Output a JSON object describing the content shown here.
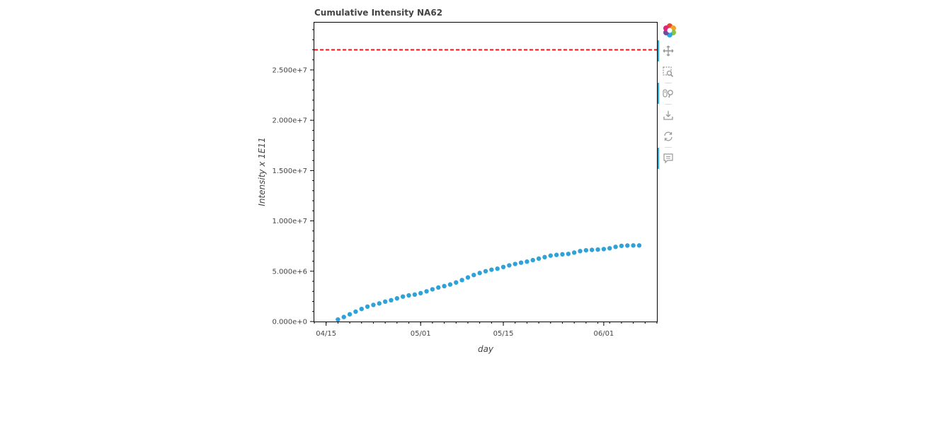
{
  "chart_data": {
    "type": "scatter",
    "title": "Cumulative Intensity NA62",
    "xlabel": "day",
    "ylabel": "Intensity x 1E11",
    "x_type": "date",
    "xlim": [
      "2023-04-13",
      "2023-06-10"
    ],
    "ylim": [
      0,
      29700000
    ],
    "x_ticks": [
      {
        "date": "2023-04-15",
        "label": "04/15"
      },
      {
        "date": "2023-05-01",
        "label": "05/01"
      },
      {
        "date": "2023-05-15",
        "label": "05/15"
      },
      {
        "date": "2023-06-01",
        "label": "06/01"
      }
    ],
    "y_ticks": [
      {
        "value": 0,
        "label": "0.000e+0"
      },
      {
        "value": 5000000,
        "label": "5.000e+6"
      },
      {
        "value": 10000000,
        "label": "1.000e+7"
      },
      {
        "value": 15000000,
        "label": "1.500e+7"
      },
      {
        "value": 20000000,
        "label": "2.000e+7"
      },
      {
        "value": 25000000,
        "label": "2.500e+7"
      }
    ],
    "reference_line": {
      "value": 27000000,
      "color": "#e41a1c",
      "style": "dashed"
    },
    "series": [
      {
        "color": "#30a2da",
        "x": [
          "2023-04-17",
          "2023-04-18",
          "2023-04-19",
          "2023-04-20",
          "2023-04-21",
          "2023-04-22",
          "2023-04-23",
          "2023-04-24",
          "2023-04-25",
          "2023-04-26",
          "2023-04-27",
          "2023-04-28",
          "2023-04-29",
          "2023-04-30",
          "2023-05-01",
          "2023-05-02",
          "2023-05-03",
          "2023-05-04",
          "2023-05-05",
          "2023-05-06",
          "2023-05-07",
          "2023-05-08",
          "2023-05-09",
          "2023-05-10",
          "2023-05-11",
          "2023-05-12",
          "2023-05-13",
          "2023-05-14",
          "2023-05-15",
          "2023-05-16",
          "2023-05-17",
          "2023-05-18",
          "2023-05-19",
          "2023-05-20",
          "2023-05-21",
          "2023-05-22",
          "2023-05-23",
          "2023-05-24",
          "2023-05-25",
          "2023-05-26",
          "2023-05-27",
          "2023-05-28",
          "2023-05-29",
          "2023-05-30",
          "2023-05-31",
          "2023-06-01",
          "2023-06-02",
          "2023-06-03",
          "2023-06-04",
          "2023-06-05",
          "2023-06-06",
          "2023-06-07"
        ],
        "values": [
          200000,
          450000,
          720000,
          980000,
          1250000,
          1480000,
          1650000,
          1800000,
          1980000,
          2120000,
          2300000,
          2480000,
          2600000,
          2680000,
          2820000,
          3000000,
          3200000,
          3380000,
          3520000,
          3680000,
          3880000,
          4120000,
          4380000,
          4620000,
          4820000,
          5000000,
          5150000,
          5250000,
          5420000,
          5580000,
          5720000,
          5850000,
          5950000,
          6100000,
          6250000,
          6400000,
          6550000,
          6620000,
          6680000,
          6720000,
          6850000,
          7000000,
          7080000,
          7120000,
          7150000,
          7200000,
          7280000,
          7420000,
          7520000,
          7550000,
          7560000,
          7560000
        ]
      }
    ]
  },
  "toolbar": {
    "tools": [
      {
        "name": "bokeh-logo",
        "icon": "bokeh-logo-icon",
        "active": false,
        "interactable": true
      },
      {
        "name": "pan-tool",
        "icon": "pan-icon",
        "active": true,
        "interactable": true
      },
      {
        "name": "box-zoom-tool",
        "icon": "box-zoom-icon",
        "active": false,
        "interactable": true
      },
      {
        "name": "wheel-zoom-tool",
        "icon": "wheel-zoom-icon",
        "active": true,
        "interactable": true
      },
      {
        "name": "save-tool",
        "icon": "save-icon",
        "active": false,
        "interactable": true
      },
      {
        "name": "reset-tool",
        "icon": "reset-icon",
        "active": false,
        "interactable": true
      },
      {
        "name": "hover-tool",
        "icon": "hover-icon",
        "active": true,
        "interactable": true
      }
    ]
  }
}
